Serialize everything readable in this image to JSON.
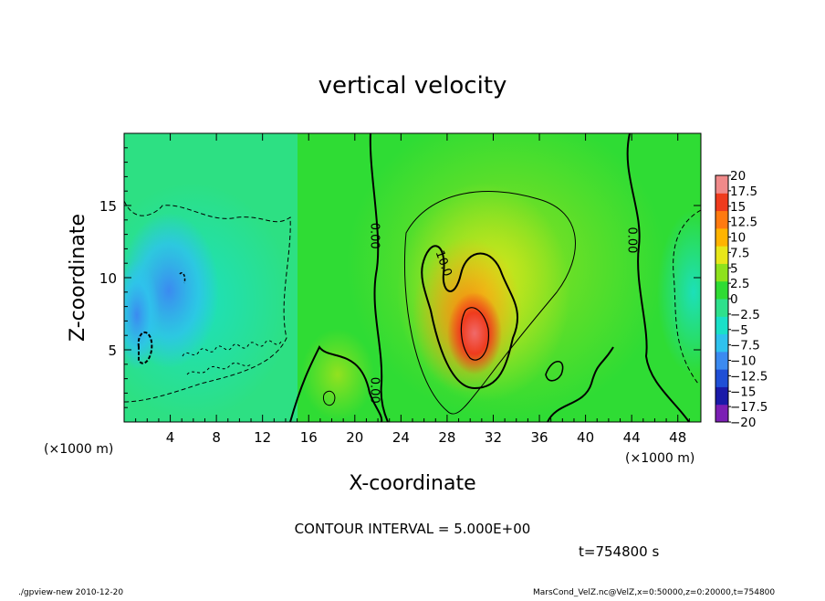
{
  "chart_data": {
    "type": "heatmap",
    "title": "vertical velocity",
    "xlabel": "X-coordinate",
    "ylabel": "Z-coordinate",
    "x_unit": "(×1000 m)",
    "z_unit": "(×1000 m)",
    "xlim": [
      0,
      50
    ],
    "zlim": [
      0,
      20
    ],
    "x_ticks": [
      4,
      8,
      12,
      16,
      20,
      24,
      28,
      32,
      36,
      40,
      44,
      48
    ],
    "z_ticks": [
      5,
      10,
      15
    ],
    "contour_interval_text": "CONTOUR INTERVAL = 5.000E+00",
    "time_text": "t=754800 s",
    "colorbar_levels": [
      "20",
      "17.5",
      "15",
      "12.5",
      "10",
      "7.5",
      "5",
      "2.5",
      "0",
      "−2.5",
      "−5",
      "−7.5",
      "−10",
      "−12.5",
      "−15",
      "−17.5",
      "−20"
    ],
    "contour_labels": [
      {
        "text": "0.00",
        "x": 21.4,
        "z": 12.9,
        "rot": 90
      },
      {
        "text": "0.00",
        "x": 21.4,
        "z": 2.2,
        "rot": 90
      },
      {
        "text": "0.00",
        "x": 43.7,
        "z": 12.6,
        "rot": 90
      },
      {
        "text": "10.0",
        "x": 27.4,
        "z": 10.9,
        "rot": 70
      }
    ],
    "features": [
      {
        "kind": "updraft_core",
        "x": 30.5,
        "z": 6.0,
        "value": 17.5
      },
      {
        "kind": "updraft",
        "x": 30.0,
        "z": 8.0,
        "value": 12.5
      },
      {
        "kind": "downdraft",
        "x": 4.5,
        "z": 8.5,
        "value": -10
      }
    ]
  },
  "footer": {
    "left": "./gpview-new  2010-12-20",
    "right": "MarsCond_VelZ.nc@VelZ,x=0:50000,z=0:20000,t=754800"
  },
  "colors": {
    "scale": [
      "#7b1fb4",
      "#1a1aa8",
      "#1f4fd6",
      "#3b8af0",
      "#2fc2ee",
      "#1ae0c8",
      "#2ee08c",
      "#2fdc34",
      "#8ee21d",
      "#e8e71a",
      "#ffb400",
      "#ff7a10",
      "#ef3b1d",
      "#f08a8a"
    ]
  }
}
